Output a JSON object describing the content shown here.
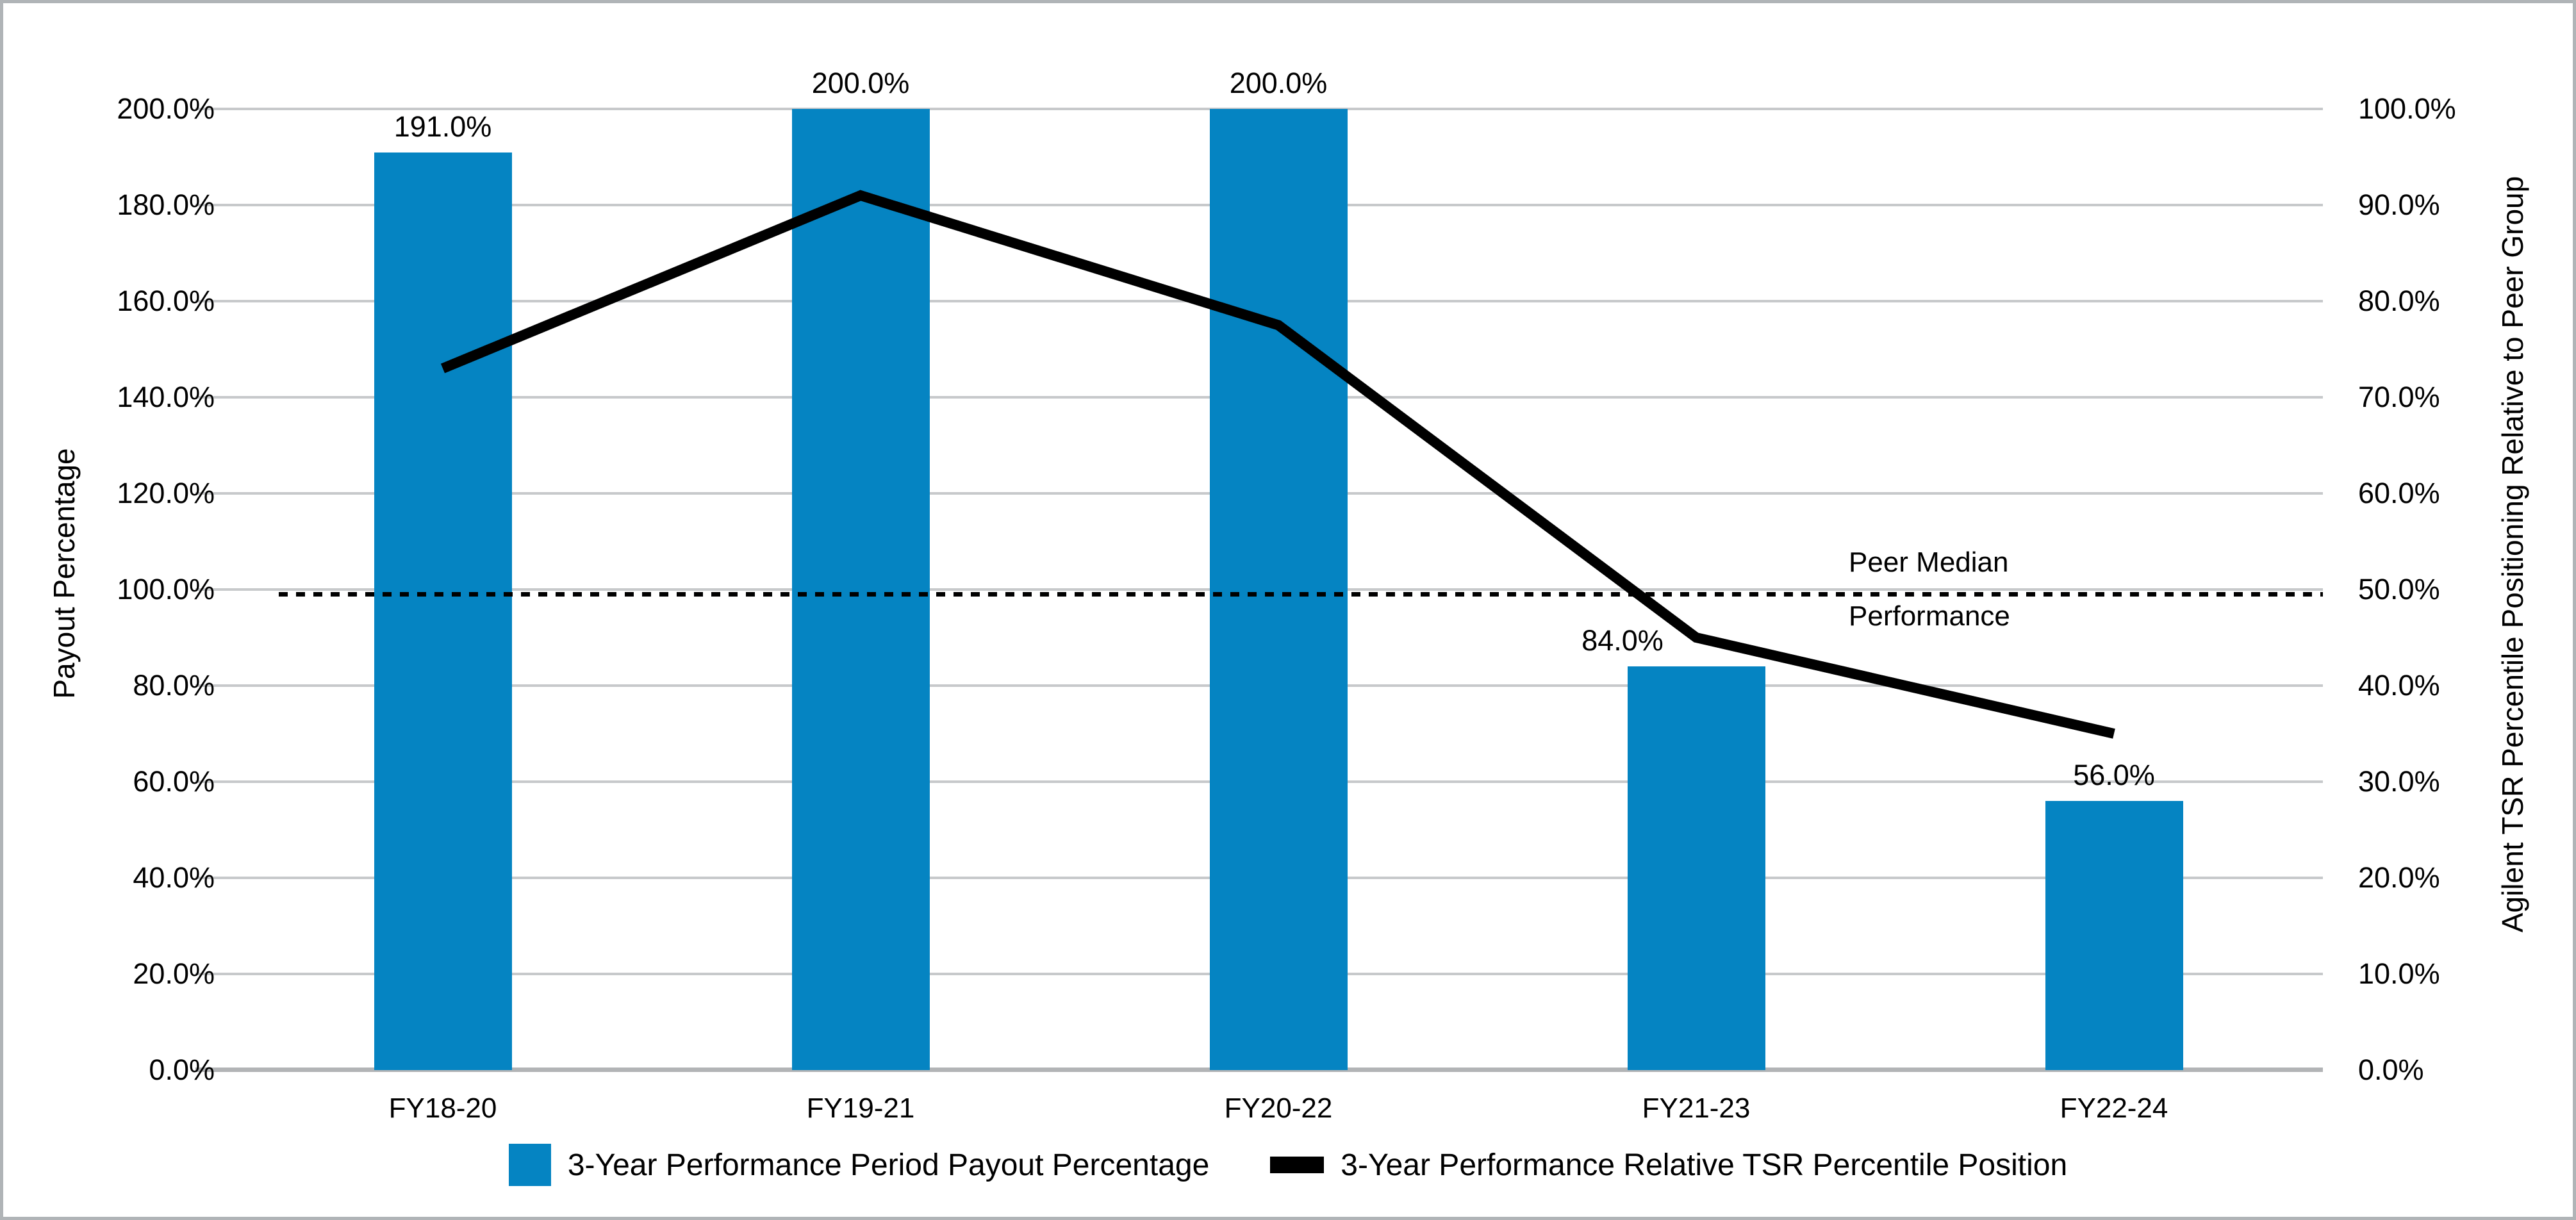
{
  "chart_data": {
    "type": "bar+line",
    "categories": [
      "FY18-20",
      "FY19-21",
      "FY20-22",
      "FY21-23",
      "FY22-24"
    ],
    "series": [
      {
        "name": "3-Year Performance Period Payout Percentage",
        "type": "bar",
        "axis": "left",
        "color": "#0584c2",
        "values": [
          191.0,
          200.0,
          200.0,
          84.0,
          56.0
        ],
        "data_labels": [
          "191.0%",
          "200.0%",
          "200.0%",
          "84.0%",
          "56.0%"
        ]
      },
      {
        "name": "3-Year Performance Relative TSR Percentile Position",
        "type": "line",
        "axis": "right",
        "color": "#000000",
        "values": [
          73.0,
          91.0,
          77.5,
          45.0,
          35.0
        ]
      }
    ],
    "left_axis": {
      "title": "Payout Percentage",
      "min": 0,
      "max": 200,
      "step": 20,
      "tick_labels": [
        "0.0%",
        "20.0%",
        "40.0%",
        "60.0%",
        "80.0%",
        "100.0%",
        "120.0%",
        "140.0%",
        "160.0%",
        "180.0%",
        "200.0%"
      ]
    },
    "right_axis": {
      "title": "Agilent TSR Percentile Positioning Relative to Peer Group",
      "min": 0,
      "max": 100,
      "step": 10,
      "tick_labels": [
        "0.0%",
        "10.0%",
        "20.0%",
        "30.0%",
        "40.0%",
        "50.0%",
        "60.0%",
        "70.0%",
        "80.0%",
        "90.0%",
        "100.0%"
      ]
    },
    "reference_line": {
      "style": "dotted",
      "color": "#000000",
      "left_value": 100,
      "right_value": 50,
      "label_line1": "Peer Median",
      "label_line2": "Performance"
    },
    "legend": [
      {
        "label": "3-Year Performance Period Payout Percentage",
        "marker": "square",
        "color": "#0584c2"
      },
      {
        "label": "3-Year Performance Relative TSR Percentile Position",
        "marker": "line",
        "color": "#000000"
      }
    ],
    "grid": "horizontal",
    "colors": {
      "gridline": "#c7c9cb",
      "axis_line": "#b2b4b6",
      "frame_border": "#b0b4b7",
      "background": "#ffffff"
    }
  }
}
